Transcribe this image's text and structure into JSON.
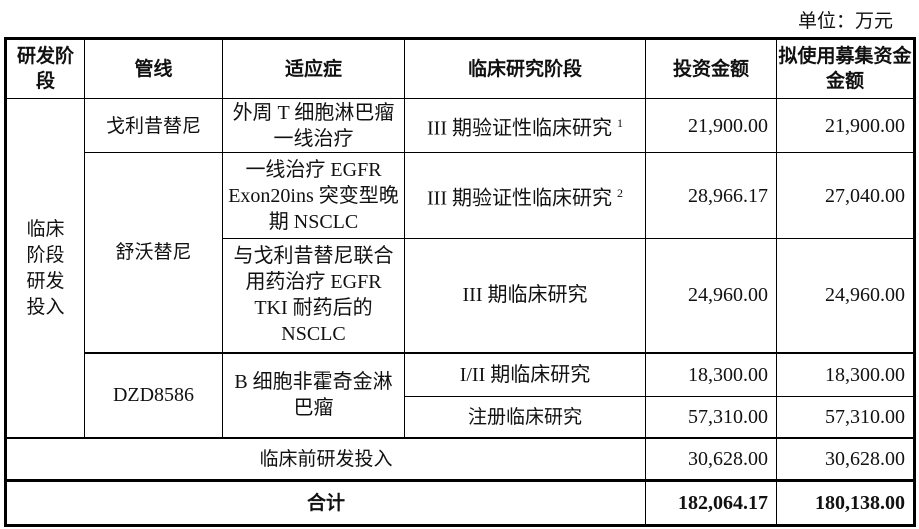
{
  "unit_label": "单位：万元",
  "headers": [
    "研发阶段",
    "管线",
    "适应症",
    "临床研究阶段",
    "投资金额",
    "拟使用募集资金金额"
  ],
  "clinical_stage": "临床阶段研发投入",
  "rows": [
    {
      "pipeline": "戈利昔替尼",
      "indication": "外周 T 细胞淋巴瘤一线治疗",
      "phase": "III 期验证性临床研究",
      "note": "1",
      "investment": "21,900.00",
      "raised": "21,900.00"
    },
    {
      "pipeline": "舒沃替尼",
      "indication": "一线治疗 EGFR Exon20ins 突变型晚期 NSCLC",
      "phase": "III 期验证性临床研究",
      "note": "2",
      "investment": "28,966.17",
      "raised": "27,040.00"
    },
    {
      "indication": "与戈利昔替尼联合用药治疗 EGFR TKI 耐药后的 NSCLC",
      "phase": "III 期临床研究",
      "investment": "24,960.00",
      "raised": "24,960.00"
    },
    {
      "pipeline": "DZD8586",
      "indication": "B 细胞非霍奇金淋巴瘤",
      "phase": "I/II 期临床研究",
      "investment": "18,300.00",
      "raised": "18,300.00"
    },
    {
      "phase": "注册临床研究",
      "investment": "57,310.00",
      "raised": "57,310.00"
    }
  ],
  "preclinical": {
    "label": "临床前研发投入",
    "investment": "30,628.00",
    "raised": "30,628.00"
  },
  "total": {
    "label": "合计",
    "investment": "182,064.17",
    "raised": "180,138.00"
  }
}
